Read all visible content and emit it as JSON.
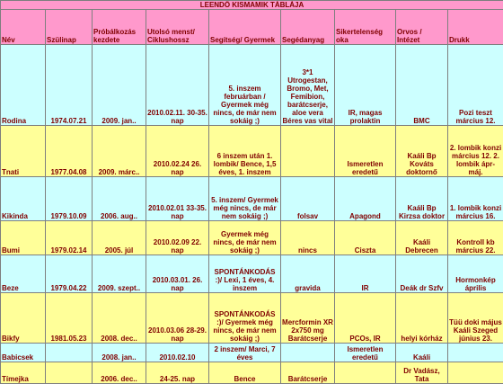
{
  "title": "LEENDŐ KISMAMIK TÁBLÁJA",
  "columns": [
    "Név",
    "Szülinap",
    "Próbálkozás kezdete",
    "Utolsó menst/ Ciklushossz",
    "Segítség/ Gyermek",
    "Segédanyag",
    "Sikertelenség oka",
    "Orvos / Intézet",
    "Drukk"
  ],
  "rows": [
    {
      "nev": "Rodina",
      "szulinap": "1974.07.21",
      "probalkozas": "2009. jan..",
      "menst": "2010.02.11. 30-35. nap",
      "segitseg": "5. inszem februárban / Gyermek még nincs, de már nem sokáig ;)",
      "segedanyag": "3*1 Utrogestan, Bromo, Met, Femibion, barátcserje, aloe vera Béres vas vital",
      "ok": "IR, magas prolaktin",
      "orvos": "BMC",
      "drukk": "Pozi teszt március 12."
    },
    {
      "nev": "Tnati",
      "szulinap": "1977.04.08",
      "probalkozas": "2009. márc..",
      "menst": "2010.02.24 26. nap",
      "segitseg": "6 inszem után 1. lombik/ Bence, 1,5 éves, 1. inszem",
      "segedanyag": "",
      "ok": "Ismeretlen eredetű",
      "orvos": "Kaáli Bp Kováts doktornő",
      "drukk": "2. lombik konzi március 12. 2. lombik ápr-máj."
    },
    {
      "nev": "Kikinda",
      "szulinap": "1979.10.09",
      "probalkozas": "2006. aug..",
      "menst": "2010.02.01 33-35. nap",
      "segitseg": "5. inszem/ Gyermek még nincs, de már nem sokáig ;)",
      "segedanyag": "folsav",
      "ok": "Apagond",
      "orvos": "Kaáli Bp Kirzsa doktor",
      "drukk": "1. lombik konzi március 16."
    },
    {
      "nev": "Bumi",
      "szulinap": "1979.02.14",
      "probalkozas": "2005. júl",
      "menst": "2010.02.09 22. nap",
      "segitseg": "Gyermek még nincs, de már nem sokáig ;)",
      "segedanyag": "nincs",
      "ok": "Ciszta",
      "orvos": "Kaáli Debrecen",
      "drukk": "Kontroll kb március 22."
    },
    {
      "nev": "Beze",
      "szulinap": "1979.04.22",
      "probalkozas": "2009. szept..",
      "menst": "2010.03.01. 26. nap",
      "segitseg": "SPONTÁNKODÁS :)/ Lexi, 1 éves, 4. inszem",
      "segedanyag": "gravida",
      "ok": "IR",
      "orvos": "Deák dr Szfv",
      "drukk": "Hormonkép április"
    },
    {
      "nev": "Bikfy",
      "szulinap": "1981.05.23",
      "probalkozas": "2008. dec..",
      "menst": "2010.03.06 28-29. nap",
      "segitseg": "SPONTÁNKODÁS :)/ Gyermek még nincs, de már nem sokáig ;)",
      "segedanyag": "Mercformin XR 2x750 mg Barátcserje",
      "ok": "PCOs, IR",
      "orvos": "helyi kórház",
      "drukk": "Tüü doki május Kaáli Szeged június 23."
    },
    {
      "nev": "Babicsek",
      "szulinap": "",
      "probalkozas": "2008. jan..",
      "menst": "2010.02.10",
      "segitseg": "2 inszem/ Marci, 7 éves",
      "segedanyag": "",
      "ok": "Ismeretlen eredetű",
      "orvos": "Kaáli",
      "drukk": ""
    },
    {
      "nev": "Tímejka",
      "szulinap": "",
      "probalkozas": "2006. dec..",
      "menst": "24-25. nap",
      "segitseg": "Bence",
      "segedanyag": "Barátcserje",
      "ok": "",
      "orvos": "Dr Vadász, Tata",
      "drukk": ""
    }
  ]
}
